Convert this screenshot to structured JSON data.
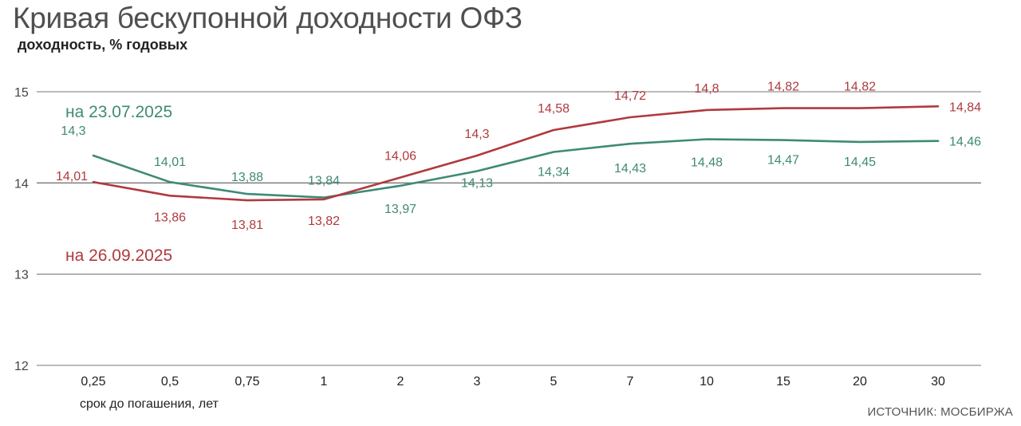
{
  "header": {
    "title": "Кривая бескупонной доходности ОФЗ",
    "subtitle": "доходность, % годовых"
  },
  "source": "ИСТОЧНИК: МОСБИРЖА",
  "colors": {
    "jul": "#3f8a76",
    "sep": "#b03a3e",
    "grid": "#777777",
    "text": "#444444"
  },
  "chart_data": {
    "type": "line",
    "title": "Кривая бескупонной доходности ОФЗ",
    "ylabel": "доходность, % годовых",
    "xlabel": "срок до погашения, лет",
    "categories": [
      "0,25",
      "0,5",
      "0,75",
      "1",
      "2",
      "3",
      "5",
      "7",
      "10",
      "15",
      "20",
      "30"
    ],
    "ylim": [
      12,
      15
    ],
    "yticks": [
      12,
      13,
      14,
      15
    ],
    "grid": true,
    "series": [
      {
        "name": "на 23.07.2025",
        "color": "#3f8a76",
        "values": [
          14.3,
          14.01,
          13.88,
          13.84,
          13.97,
          14.13,
          14.34,
          14.43,
          14.48,
          14.47,
          14.45,
          14.46
        ],
        "labels": [
          "14,3",
          "14,01",
          "13,88",
          "13,84",
          "13,97",
          "14,13",
          "14,34",
          "14,43",
          "14,48",
          "14,47",
          "14,45",
          "14,46"
        ]
      },
      {
        "name": "на 26.09.2025",
        "color": "#b03a3e",
        "values": [
          14.01,
          13.86,
          13.81,
          13.82,
          14.06,
          14.3,
          14.58,
          14.72,
          14.8,
          14.82,
          14.82,
          14.84
        ],
        "labels": [
          "14,01",
          "13,86",
          "13,81",
          "13,82",
          "14,06",
          "14,3",
          "14,58",
          "14,72",
          "14,8",
          "14,82",
          "14,82",
          "14,84"
        ]
      }
    ]
  }
}
